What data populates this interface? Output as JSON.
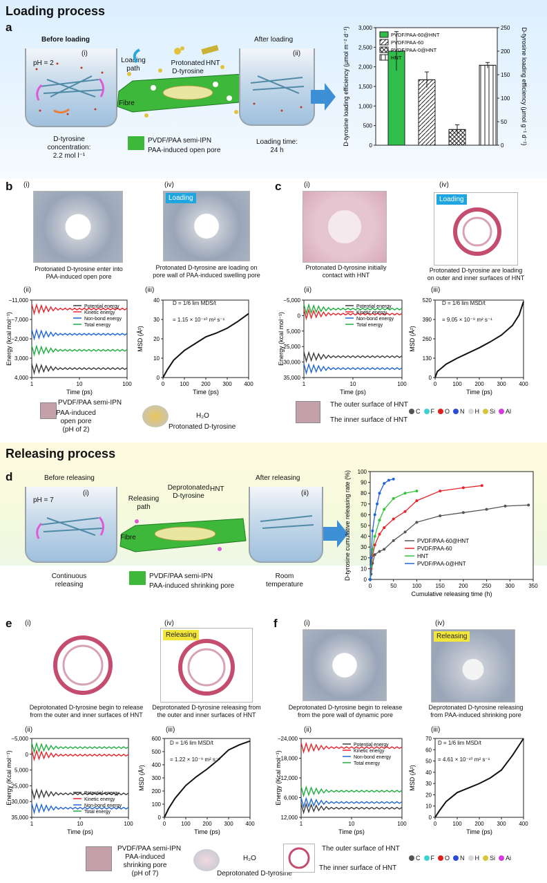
{
  "figure": {
    "loading_title": "Loading process",
    "releasing_title": "Releasing process",
    "panel_a": "a",
    "panel_b": "b",
    "panel_c": "c",
    "panel_d": "d",
    "panel_e": "e",
    "panel_f": "f"
  },
  "loading": {
    "before": "Before loading",
    "ph": "pH = 2",
    "roman_i": "(i)",
    "roman_ii": "(ii)",
    "loading_path": "Loading\npath",
    "protonated": "Protonated\nD-tyrosine",
    "hnt": "HNT",
    "fibre": "Fibre",
    "after": "After loading",
    "concentration": "D-tyrosine\nconcentration:\n2.2 mol l⁻¹",
    "semi_ipn": "PVDF/PAA semi-IPN",
    "open_pore": "PAA-induced open pore",
    "loading_time": "Loading time:\n24 h"
  },
  "releasing": {
    "before": "Before releasing",
    "ph": "pH = 7",
    "roman_i": "(i)",
    "roman_ii": "(ii)",
    "releasing_path": "Releasing\npath",
    "deprotonated": "Deprotonated\nD-tyrosine",
    "hnt": "HNT",
    "fibre": "Fibre",
    "after": "After releasing",
    "continuous": "Continuous\nreleasing",
    "semi_ipn": "PVDF/PAA semi-IPN",
    "shrinking_pore": "PAA-induced shrinking pore",
    "room": "Room\ntemperature"
  },
  "panel_b": {
    "i": "(i)",
    "ii": "(ii)",
    "iii": "(iii)",
    "iv": "(iv)",
    "loading_tag": "Loading",
    "cap_i": "Protonated D-tyrosine enter into\nPAA-induced open pore",
    "cap_iv": "Protonated D-tyrosine are loading on\npore wall of PAA-induced swelling pore",
    "msd_eq": "D = 1/6 lim MDS/t",
    "msd_val": "= 1.15 × 10⁻¹⁰ m² s⁻¹",
    "legend_semi": "PVDF/PAA semi-IPN",
    "legend_pore": "PAA-induced\nopen pore\n(pH of 2)",
    "h2o": "H₂O",
    "protonated": "Protonated D-tyrosine"
  },
  "panel_c": {
    "i": "(i)",
    "ii": "(ii)",
    "iii": "(iii)",
    "iv": "(iv)",
    "loading_tag": "Loading",
    "cap_i": "Protonated D-tyrosine initially\ncontact with HNT",
    "cap_iv": "Protonated D-tyrosine are loading\non outer and inner surfaces of HNT",
    "msd_eq": "D = 1/6 lim MSD/t",
    "msd_val": "= 9.05 × 10⁻⁹ m² s⁻¹",
    "outer": "The outer surface of HNT",
    "inner": "The inner surface of HNT"
  },
  "panel_e": {
    "i": "(i)",
    "ii": "(ii)",
    "iii": "(iii)",
    "iv": "(iv)",
    "releasing_tag": "Releasing",
    "cap_i": "Deprotonated D-tyrosine begin to release\nfrom the outer and inner surfaces of HNT",
    "cap_iv": "Deprotonated D-tyrosine releasing from\nthe outer and inner surfaces of HNT",
    "msd_eq": "D = 1/6 lim MSD/t",
    "msd_val": "= 1.22 × 10⁻⁹ m² s⁻¹",
    "legend_semi": "PVDF/PAA semi-IPN",
    "legend_pore": "PAA-induced\nshrinking pore\n(pH of 7)",
    "h2o": "H₂O",
    "deprotonated": "Deprotonated D-tyrosine",
    "outer": "The outer surface of HNT",
    "inner": "The inner surface of HNT"
  },
  "panel_f": {
    "i": "(i)",
    "ii": "(ii)",
    "iii": "(iii)",
    "iv": "(iv)",
    "releasing_tag": "Releasing",
    "cap_i": "Deprotonated D-tyrosine begin to release\nfrom the pore wall of dynamic pore",
    "cap_iv": "Deprotonated D-tyrosine releasing\nfrom PAA-induced shrinking pore",
    "msd_eq": "D = 1/6 lim MSD/t",
    "msd_val": "= 4.61 × 10⁻¹⁰ m² s⁻¹"
  },
  "atoms": {
    "items": [
      {
        "label": "C",
        "color": "#555555"
      },
      {
        "label": "F",
        "color": "#3fd0d0"
      },
      {
        "label": "O",
        "color": "#e0201c"
      },
      {
        "label": "N",
        "color": "#2a4bd6"
      },
      {
        "label": "H",
        "color": "#d9d9d9"
      },
      {
        "label": "Si",
        "color": "#d9c53a"
      },
      {
        "label": "Al",
        "color": "#d63adf"
      }
    ],
    "items_f": [
      {
        "label": "C",
        "color": "#555555"
      },
      {
        "label": "F",
        "color": "#3fd0d0"
      },
      {
        "label": "O",
        "color": "#e0201c"
      },
      {
        "label": "N",
        "color": "#2a4bd6"
      },
      {
        "label": "H",
        "color": "#d9d9d9"
      },
      {
        "label": "Si",
        "color": "#d9c53a"
      },
      {
        "label": "Ai",
        "color": "#d63adf"
      }
    ]
  },
  "energy_legend": [
    "Potential energy",
    "Kinetic energy",
    "Non-bond energy",
    "Total energy"
  ],
  "colors": {
    "potential": "#3c3c3c",
    "kinetic": "#e8242b",
    "nonbond": "#2066d6",
    "total": "#1fae3f",
    "green_fill": "#2fbf4a"
  },
  "chart_data": [
    {
      "id": "a-bar",
      "type": "bar",
      "ylabel": "D-tyrosine loading efficiency (μmol m⁻² d⁻¹)",
      "y2label": "D-tyrosine loading efficiency (μmol g⁻¹ d⁻¹)",
      "ylim": [
        0,
        3000
      ],
      "yticks": [
        "0",
        "500",
        "1,000",
        "1,500",
        "2,000",
        "2,500",
        "3,000"
      ],
      "y2lim": [
        0,
        250
      ],
      "y2ticks": [
        "0",
        "50",
        "100",
        "150",
        "200",
        "250"
      ],
      "series": [
        {
          "name": "PVDF/PAA-60@HNT",
          "value": 2400,
          "err": 500,
          "axis": "left"
        },
        {
          "name": "PVDF/PAA-60",
          "value": 1670,
          "err": 200,
          "axis": "left"
        },
        {
          "name": "PVDF/PAA-0@HNT",
          "value": 400,
          "err": 120,
          "axis": "left"
        },
        {
          "name": "HNT",
          "value": 170,
          "err": 6,
          "axis": "right"
        }
      ]
    },
    {
      "id": "b-ii",
      "type": "line",
      "xlabel": "Time (ps)",
      "ylabel": "Energy (kcal mol⁻¹)",
      "xscale": "log",
      "xticks": [
        "1",
        "10",
        "100"
      ],
      "yticks": [
        "4,000",
        "3,000",
        "−2,000",
        "−7,000",
        "−11,000"
      ],
      "series": [
        {
          "name": "Potential energy",
          "level": -9000
        },
        {
          "name": "Kinetic energy",
          "level": 4000
        },
        {
          "name": "Non-bond energy",
          "level": -1500
        },
        {
          "name": "Total energy",
          "level": -5000
        }
      ]
    },
    {
      "id": "b-iii",
      "type": "line",
      "xlabel": "Time (ps)",
      "ylabel": "MSD (Å²)",
      "xlim": [
        0,
        400
      ],
      "ylim": [
        0,
        40
      ],
      "xticks": [
        "0",
        "100",
        "200",
        "300",
        "400"
      ],
      "yticks": [
        "0",
        "10",
        "20",
        "30",
        "40"
      ],
      "x": [
        0,
        20,
        50,
        100,
        150,
        200,
        250,
        300,
        350,
        400
      ],
      "y": [
        0,
        4,
        9,
        14,
        17.5,
        21,
        23,
        25.5,
        29,
        33
      ]
    },
    {
      "id": "c-ii",
      "type": "line",
      "xlabel": "Time (ps)",
      "ylabel": "Energy (kcal mol⁻¹)",
      "xscale": "log",
      "xticks": [
        "1",
        "10",
        "100"
      ],
      "yticks": [
        "35,000",
        "30,000",
        "25,000",
        "5,000",
        "0",
        "−5,000"
      ],
      "series": [
        {
          "name": "Potential energy",
          "level": 3000
        },
        {
          "name": "Kinetic energy",
          "level": 28000
        },
        {
          "name": "Non-bond energy",
          "level": -4000
        },
        {
          "name": "Total energy",
          "level": 31000
        }
      ]
    },
    {
      "id": "c-iii",
      "type": "line",
      "xlabel": "Time (ps)",
      "ylabel": "MSD (Å²)",
      "xlim": [
        0,
        400
      ],
      "ylim": [
        0,
        520
      ],
      "xticks": [
        "0",
        "100",
        "200",
        "300",
        "400"
      ],
      "yticks": [
        "0",
        "130",
        "260",
        "390",
        "520"
      ],
      "x": [
        0,
        10,
        50,
        100,
        150,
        200,
        250,
        300,
        350,
        380,
        400
      ],
      "y": [
        0,
        40,
        90,
        130,
        165,
        200,
        240,
        285,
        350,
        420,
        510
      ]
    },
    {
      "id": "d-release",
      "type": "line",
      "xlabel": "Cumulative releasing time (h)",
      "ylabel": "D-tyrosine cumulative releasing rate (%)",
      "xlim": [
        0,
        350
      ],
      "ylim": [
        0,
        100
      ],
      "xticks": [
        "0",
        "50",
        "100",
        "150",
        "200",
        "250",
        "300",
        "350"
      ],
      "yticks": [
        "0",
        "10",
        "20",
        "30",
        "40",
        "50",
        "60",
        "70",
        "80",
        "90",
        "100"
      ],
      "series": [
        {
          "name": "PVDF/PAA-60@HNT",
          "x": [
            0,
            2,
            5,
            10,
            20,
            30,
            50,
            75,
            100,
            150,
            200,
            250,
            290,
            340
          ],
          "y": [
            0,
            5,
            15,
            23,
            26,
            28,
            36,
            44,
            53,
            59,
            62,
            65,
            68,
            69
          ]
        },
        {
          "name": "PVDF/PAA-60",
          "x": [
            0,
            2,
            5,
            10,
            20,
            30,
            50,
            75,
            100,
            150,
            200,
            240
          ],
          "y": [
            0,
            10,
            22,
            32,
            42,
            48,
            56,
            63,
            73,
            82,
            85,
            87
          ]
        },
        {
          "name": "HNT",
          "x": [
            0,
            2,
            5,
            10,
            20,
            30,
            50,
            75,
            100
          ],
          "y": [
            0,
            12,
            28,
            40,
            55,
            65,
            75,
            80,
            82
          ]
        },
        {
          "name": "PVDF/PAA-0@HNT",
          "x": [
            0,
            2,
            5,
            10,
            15,
            20,
            30,
            40,
            50
          ],
          "y": [
            0,
            20,
            45,
            60,
            70,
            80,
            89,
            92,
            93
          ]
        }
      ]
    },
    {
      "id": "e-ii",
      "type": "line",
      "xlabel": "Time (ps)",
      "ylabel": "Energy (Kcal mol⁻¹)",
      "xscale": "log",
      "xticks": [
        "1",
        "10",
        "100"
      ],
      "yticks": [
        "35,000",
        "30,000",
        "25,000",
        "5,000",
        "0",
        "−5,000"
      ],
      "series": [
        {
          "name": "Potential energy",
          "level": 4000
        },
        {
          "name": "Kinetic energy",
          "level": 27000
        },
        {
          "name": "Non-bond energy",
          "level": -4500
        },
        {
          "name": "Total energy",
          "level": 31500
        }
      ]
    },
    {
      "id": "e-iii",
      "type": "line",
      "xlabel": "Time (ps)",
      "ylabel": "MSD (Å²)",
      "xlim": [
        0,
        400
      ],
      "ylim": [
        0,
        620
      ],
      "xticks": [
        "0",
        "100",
        "200",
        "300",
        "400"
      ],
      "yticks": [
        "0",
        "100",
        "200",
        "300",
        "400",
        "500",
        "600"
      ],
      "x": [
        0,
        20,
        50,
        100,
        150,
        200,
        250,
        300,
        350,
        400
      ],
      "y": [
        0,
        70,
        150,
        250,
        320,
        380,
        450,
        530,
        570,
        600
      ]
    },
    {
      "id": "f-ii",
      "type": "line",
      "xlabel": "Time (ps)",
      "ylabel": "Energy (Kcal mol⁻¹)",
      "xscale": "log",
      "xticks": [
        "1",
        "10",
        "100"
      ],
      "yticks": [
        "12,000",
        "6,000",
        "−12,000",
        "−18,000",
        "−24,000"
      ],
      "series": [
        {
          "name": "Potential energy",
          "level": -23000
        },
        {
          "name": "Kinetic energy",
          "level": 9000
        },
        {
          "name": "Non-bond energy",
          "level": -20000
        },
        {
          "name": "Total energy",
          "level": -14000
        }
      ]
    },
    {
      "id": "f-iii",
      "type": "line",
      "xlabel": "Time (ps)",
      "ylabel": "MSD (Å²)",
      "xlim": [
        0,
        400
      ],
      "ylim": [
        0,
        70
      ],
      "xticks": [
        "0",
        "100",
        "200",
        "300",
        "400"
      ],
      "yticks": [
        "0",
        "10",
        "20",
        "30",
        "40",
        "50",
        "60",
        "70"
      ],
      "x": [
        0,
        20,
        50,
        100,
        150,
        200,
        250,
        300,
        350,
        400
      ],
      "y": [
        0,
        6,
        14,
        22,
        26,
        30,
        35,
        42,
        55,
        70
      ]
    }
  ]
}
